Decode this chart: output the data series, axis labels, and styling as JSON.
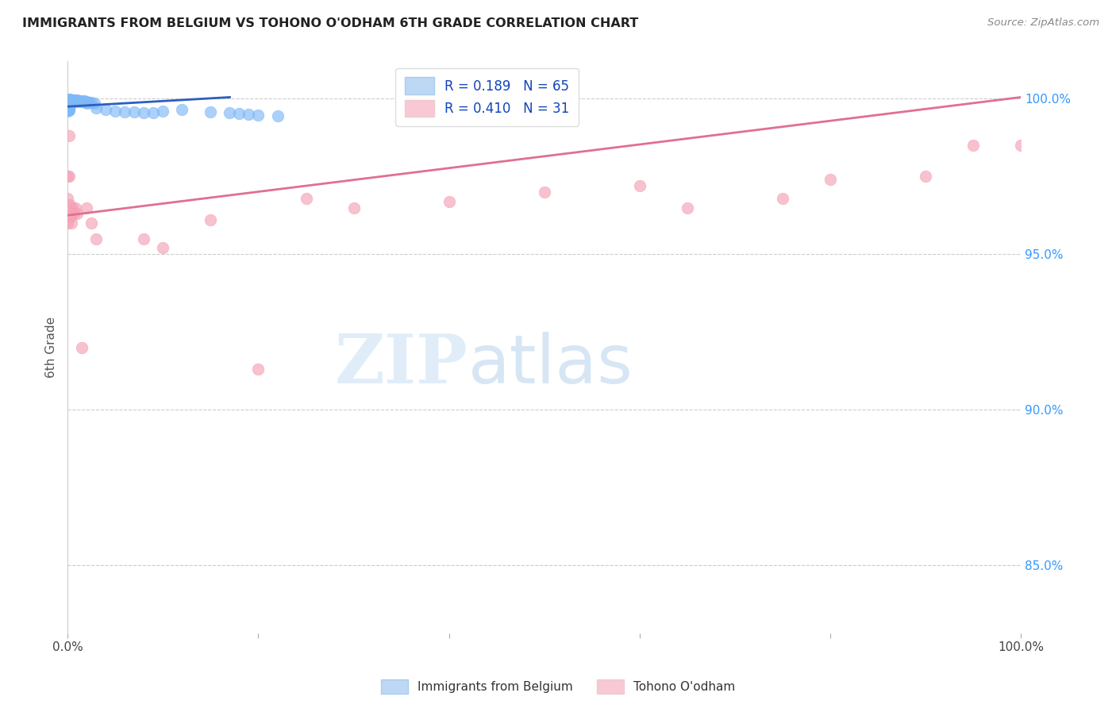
{
  "title": "IMMIGRANTS FROM BELGIUM VS TOHONO O'ODHAM 6TH GRADE CORRELATION CHART",
  "source": "Source: ZipAtlas.com",
  "ylabel": "6th Grade",
  "watermark_zip": "ZIP",
  "watermark_atlas": "atlas",
  "belgium_R": 0.189,
  "belgium_N": 65,
  "tohono_R": 0.41,
  "tohono_N": 31,
  "belgium_color": "#7EB8F7",
  "tohono_color": "#F4A0B5",
  "belgium_line_color": "#2B5FC0",
  "tohono_line_color": "#E07090",
  "legend_belgium_face": "#BDD8F5",
  "legend_tohono_face": "#F8C8D4",
  "ytick_labels": [
    "85.0%",
    "90.0%",
    "95.0%",
    "100.0%"
  ],
  "ytick_values": [
    0.85,
    0.9,
    0.95,
    1.0
  ],
  "xlim": [
    0.0,
    1.0
  ],
  "ylim": [
    0.828,
    1.012
  ],
  "bel_x": [
    0.0,
    0.0,
    0.0,
    0.0,
    0.0,
    0.0,
    0.0,
    0.0,
    0.001,
    0.001,
    0.001,
    0.001,
    0.001,
    0.001,
    0.001,
    0.001,
    0.001,
    0.001,
    0.002,
    0.002,
    0.002,
    0.002,
    0.002,
    0.002,
    0.003,
    0.003,
    0.003,
    0.004,
    0.004,
    0.005,
    0.005,
    0.006,
    0.006,
    0.007,
    0.008,
    0.009,
    0.01,
    0.01,
    0.011,
    0.012,
    0.013,
    0.015,
    0.016,
    0.017,
    0.018,
    0.02,
    0.02,
    0.022,
    0.025,
    0.028,
    0.03,
    0.04,
    0.05,
    0.06,
    0.07,
    0.08,
    0.09,
    0.1,
    0.12,
    0.15,
    0.17,
    0.18,
    0.19,
    0.2,
    0.22
  ],
  "bel_y": [
    0.9995,
    0.999,
    0.9985,
    0.998,
    0.9975,
    0.997,
    0.9965,
    0.996,
    0.9998,
    0.9995,
    0.9992,
    0.9988,
    0.9984,
    0.9979,
    0.9975,
    0.997,
    0.9966,
    0.9962,
    0.9998,
    0.9994,
    0.999,
    0.9986,
    0.9982,
    0.9978,
    0.9997,
    0.9993,
    0.9988,
    0.9996,
    0.9991,
    0.9997,
    0.9992,
    0.9996,
    0.9991,
    0.9995,
    0.9994,
    0.9993,
    0.9996,
    0.999,
    0.9994,
    0.9993,
    0.9992,
    0.9994,
    0.9992,
    0.9993,
    0.9991,
    0.999,
    0.9985,
    0.9989,
    0.9988,
    0.9987,
    0.997,
    0.9965,
    0.996,
    0.9958,
    0.9957,
    0.9955,
    0.9954,
    0.996,
    0.9965,
    0.9958,
    0.9955,
    0.9953,
    0.995,
    0.9948,
    0.9945
  ],
  "toh_x": [
    0.0,
    0.0,
    0.0,
    0.001,
    0.001,
    0.002,
    0.003,
    0.004,
    0.005,
    0.006,
    0.008,
    0.01,
    0.015,
    0.02,
    0.025,
    0.03,
    0.08,
    0.1,
    0.15,
    0.2,
    0.25,
    0.3,
    0.4,
    0.5,
    0.6,
    0.65,
    0.75,
    0.8,
    0.9,
    0.95,
    1.0
  ],
  "toh_y": [
    0.975,
    0.968,
    0.96,
    0.988,
    0.975,
    0.966,
    0.962,
    0.96,
    0.965,
    0.963,
    0.965,
    0.963,
    0.92,
    0.965,
    0.96,
    0.955,
    0.955,
    0.952,
    0.961,
    0.913,
    0.968,
    0.965,
    0.967,
    0.97,
    0.972,
    0.965,
    0.968,
    0.974,
    0.975,
    0.985,
    0.985
  ],
  "bel_line_x": [
    0.0,
    0.17
  ],
  "bel_line_y": [
    0.9975,
    1.0005
  ],
  "toh_line_x": [
    0.0,
    1.0
  ],
  "toh_line_y": [
    0.9625,
    1.0005
  ]
}
